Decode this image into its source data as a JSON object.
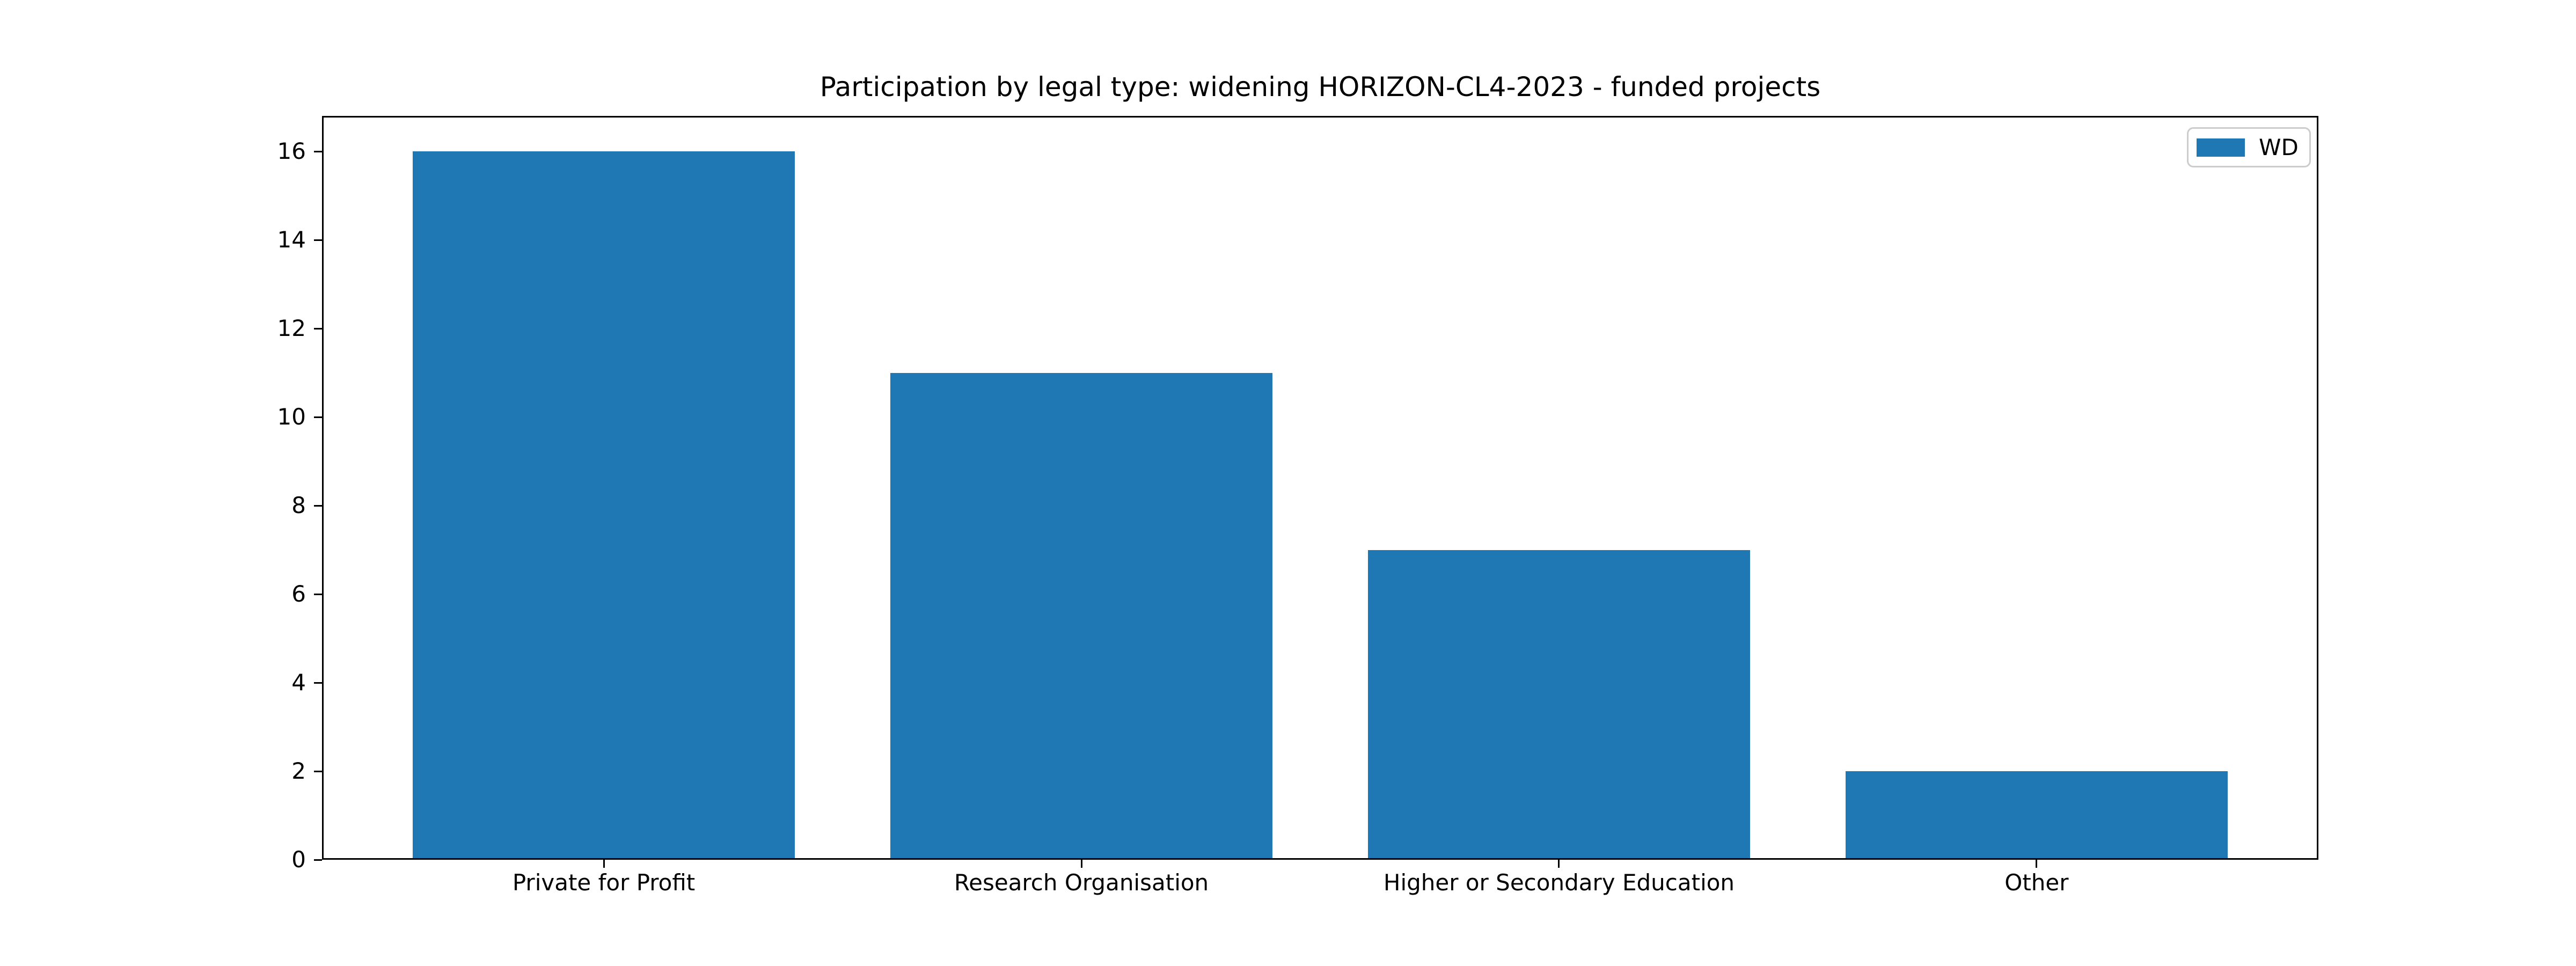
{
  "chart_data": {
    "type": "bar",
    "title": "Participation by legal type: widening HORIZON-CL4-2023 - funded projects",
    "categories": [
      "Private for Profit",
      "Research Organisation",
      "Higher or Secondary Education",
      "Other"
    ],
    "series": [
      {
        "name": "WD",
        "values": [
          16,
          11,
          7,
          2
        ]
      }
    ],
    "xlabel": "",
    "ylabel": "",
    "yticks": [
      0,
      2,
      4,
      6,
      8,
      10,
      12,
      14,
      16
    ],
    "ylim": [
      0,
      16.8
    ],
    "xlim": [
      -0.59,
      3.59
    ],
    "bar_width": 0.8,
    "bar_color": "#1f77b4",
    "axis_color": "#000000",
    "legend_border_color": "#cccccc",
    "grid": false,
    "legend": {
      "label": "WD",
      "position": "upper right",
      "swatch_color": "#1f77b4"
    }
  }
}
